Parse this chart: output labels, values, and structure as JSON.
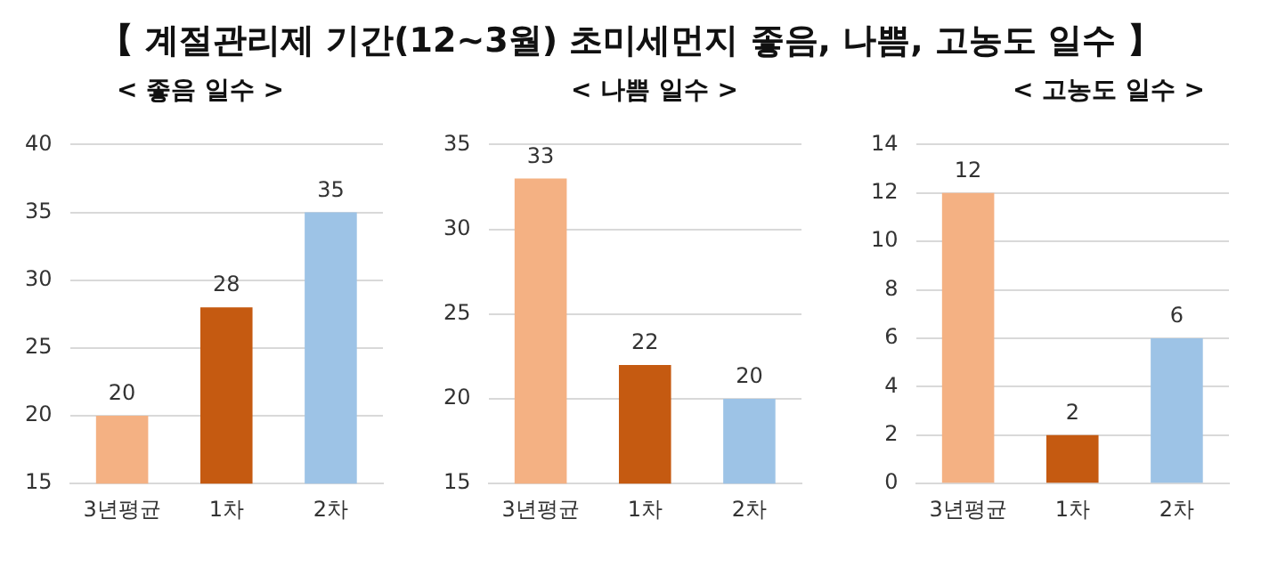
{
  "chart_data": [
    {
      "type": "bar",
      "title": "【 계절관리제 기간(12~3월) 초미세먼지 좋음, 나쁨, 고농도 일수 】",
      "subtitle": "< 좋음 일수 >",
      "categories": [
        "3년평균",
        "1차",
        "2차"
      ],
      "values": [
        20,
        28,
        35
      ],
      "colors": [
        "#f4b183",
        "#c55a11",
        "#9dc3e6"
      ],
      "ylim": [
        15,
        40
      ],
      "yticks": [
        15,
        20,
        25,
        30,
        35,
        40
      ],
      "grid": "y",
      "data_labels": true
    },
    {
      "type": "bar",
      "subtitle": "< 나쁨 일수 >",
      "categories": [
        "3년평균",
        "1차",
        "2차"
      ],
      "values": [
        33,
        22,
        20
      ],
      "colors": [
        "#f4b183",
        "#c55a11",
        "#9dc3e6"
      ],
      "ylim": [
        15,
        35
      ],
      "yticks": [
        15,
        20,
        25,
        30,
        35
      ],
      "grid": "y",
      "data_labels": true
    },
    {
      "type": "bar",
      "subtitle": "< 고농도 일수 >",
      "categories": [
        "3년평균",
        "1차",
        "2차"
      ],
      "values": [
        12,
        2,
        6
      ],
      "colors": [
        "#f4b183",
        "#c55a11",
        "#9dc3e6"
      ],
      "ylim": [
        0,
        14
      ],
      "yticks": [
        0,
        2,
        4,
        6,
        8,
        10,
        12,
        14
      ],
      "grid": "y",
      "data_labels": true
    }
  ]
}
